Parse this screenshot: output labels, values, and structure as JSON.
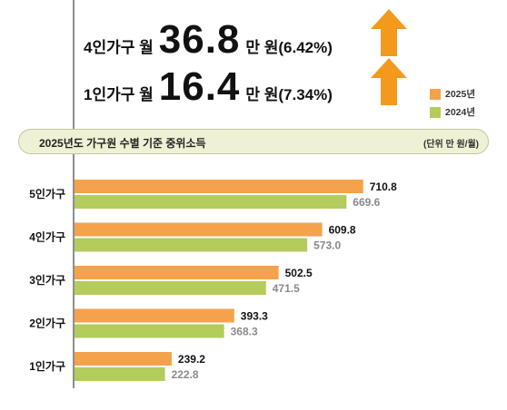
{
  "headline": {
    "line1": {
      "prefix": "4인가구 월",
      "value": "36.8",
      "suffix": "만 원(6.42%)"
    },
    "line2": {
      "prefix": "1인가구 월",
      "value": "16.4",
      "suffix": "만 원(7.34%)"
    }
  },
  "colors": {
    "s2025": "#f4a24c",
    "s2024": "#b3cc5c",
    "arrow": "#f39a1e"
  },
  "icons": {
    "arrow1": "up-arrow-icon",
    "arrow2": "up-arrow-icon"
  },
  "legend": {
    "s2025": "2025년",
    "s2024": "2024년"
  },
  "banner": {
    "title": "2025년도 가구원 수별 기준 중위소득",
    "unit": "(단위 만 원/월)"
  },
  "chart_data": {
    "type": "bar",
    "orientation": "horizontal",
    "categories": [
      "5인가구",
      "4인가구",
      "3인가구",
      "2인가구",
      "1인가구"
    ],
    "series": [
      {
        "name": "2025년",
        "values": [
          710.8,
          609.8,
          502.5,
          393.3,
          239.2
        ],
        "labels": [
          "710.8",
          "609.8",
          "502.5",
          "393.3",
          "239.2"
        ]
      },
      {
        "name": "2024년",
        "values": [
          669.6,
          573.0,
          471.5,
          368.3,
          222.8
        ],
        "labels": [
          "669.6",
          "573.0",
          "471.5",
          "368.3",
          "222.8"
        ]
      }
    ],
    "xlim": [
      0,
      1000
    ],
    "grid": false,
    "legend_position": "top-right"
  }
}
